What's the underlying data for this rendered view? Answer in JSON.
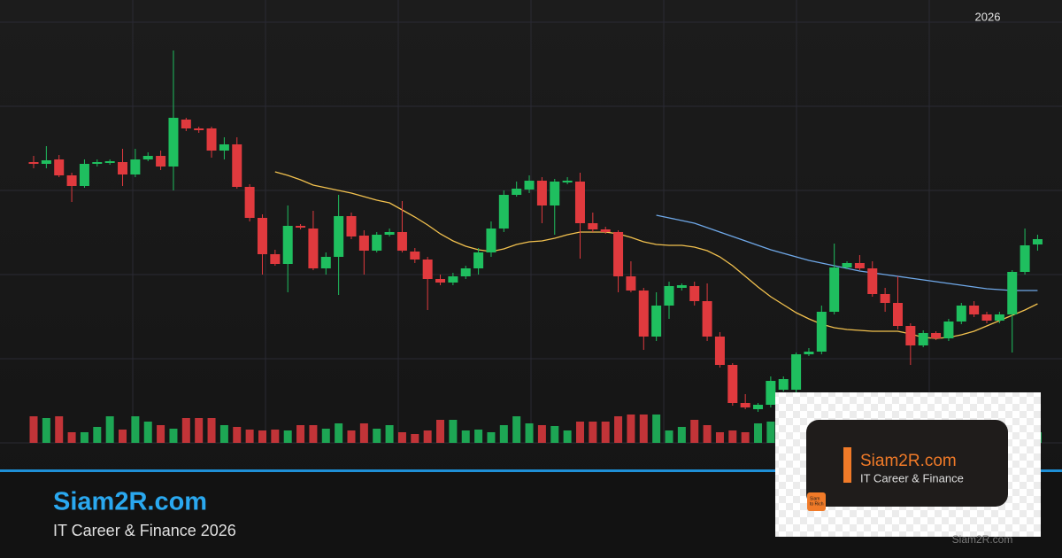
{
  "chart_data": {
    "type": "candlestick",
    "ylim": [
      0,
      475
    ],
    "volume_lim": [
      0,
      100
    ],
    "up_color": "#1fbf5f",
    "down_color": "#e03a3e",
    "open": [
      317,
      315,
      320,
      302,
      290,
      315,
      316,
      317,
      303,
      320,
      324,
      312,
      365,
      355,
      355,
      330,
      337,
      289,
      254,
      213,
      202,
      245,
      242,
      197,
      210,
      256,
      234,
      217,
      235,
      238,
      216,
      207,
      185,
      181,
      188,
      197,
      215,
      242,
      280,
      286,
      296,
      268,
      294,
      295,
      248,
      241,
      238,
      188,
      172,
      120,
      155,
      175,
      177,
      160,
      120,
      88,
      45,
      38,
      43,
      60,
      60,
      100,
      103,
      148,
      198,
      203,
      197,
      168,
      158,
      132,
      110,
      124,
      118,
      137,
      155,
      145,
      138,
      145,
      193,
      224
    ],
    "high": [
      324,
      335,
      325,
      305,
      320,
      320,
      320,
      332,
      332,
      328,
      330,
      443,
      367,
      357,
      357,
      345,
      345,
      292,
      258,
      218,
      268,
      247,
      262,
      215,
      280,
      260,
      240,
      238,
      242,
      273,
      220,
      210,
      190,
      192,
      200,
      220,
      250,
      285,
      295,
      302,
      300,
      298,
      300,
      305,
      260,
      244,
      240,
      205,
      175,
      170,
      182,
      180,
      182,
      180,
      125,
      90,
      55,
      45,
      75,
      75,
      102,
      107,
      155,
      225,
      205,
      212,
      205,
      175,
      188,
      135,
      127,
      126,
      140,
      158,
      160,
      148,
      148,
      195,
      242,
      235
    ],
    "low": [
      310,
      310,
      300,
      272,
      288,
      312,
      314,
      290,
      300,
      318,
      308,
      285,
      352,
      350,
      322,
      320,
      287,
      250,
      190,
      200,
      170,
      241,
      195,
      190,
      167,
      230,
      190,
      215,
      233,
      215,
      203,
      150,
      178,
      178,
      185,
      190,
      210,
      238,
      278,
      282,
      248,
      235,
      292,
      208,
      238,
      236,
      170,
      170,
      105,
      115,
      140,
      172,
      155,
      115,
      85,
      42,
      38,
      35,
      40,
      58,
      55,
      98,
      100,
      145,
      196,
      195,
      165,
      148,
      128,
      88,
      108,
      116,
      115,
      134,
      142,
      135,
      135,
      102,
      190,
      217
    ],
    "close": [
      315,
      319,
      302,
      290,
      315,
      317,
      318,
      303,
      320,
      324,
      312,
      367,
      355,
      353,
      330,
      337,
      289,
      254,
      213,
      202,
      245,
      243,
      197,
      210,
      256,
      233,
      217,
      235,
      238,
      217,
      207,
      185,
      181,
      188,
      197,
      215,
      242,
      280,
      287,
      296,
      268,
      295,
      296,
      248,
      241,
      238,
      188,
      172,
      120,
      155,
      177,
      178,
      160,
      120,
      88,
      45,
      40,
      43,
      70,
      72,
      100,
      103,
      148,
      198,
      203,
      197,
      168,
      158,
      132,
      110,
      124,
      118,
      137,
      155,
      145,
      138,
      145,
      193,
      223,
      230
    ],
    "volume": [
      30,
      28,
      30,
      12,
      12,
      18,
      30,
      15,
      30,
      24,
      20,
      16,
      28,
      28,
      28,
      20,
      18,
      15,
      14,
      15,
      14,
      20,
      20,
      16,
      22,
      14,
      22,
      16,
      20,
      12,
      10,
      14,
      26,
      26,
      14,
      15,
      12,
      20,
      30,
      22,
      20,
      19,
      14,
      24,
      24,
      24,
      30,
      32,
      32,
      32,
      14,
      18,
      26,
      20,
      12,
      14,
      12,
      22,
      24,
      30,
      30,
      24,
      30,
      22,
      18,
      20,
      24,
      16,
      14,
      22,
      18,
      20,
      26,
      16,
      22,
      18,
      14,
      20,
      24,
      12
    ],
    "series": [
      {
        "color": "#f2c14e",
        "values": [
          null,
          null,
          null,
          null,
          null,
          null,
          null,
          null,
          null,
          null,
          null,
          null,
          null,
          null,
          null,
          null,
          null,
          null,
          null,
          306,
          302,
          297,
          291,
          288,
          285,
          282,
          278,
          274,
          271,
          263,
          255,
          246,
          236,
          228,
          222,
          218,
          216,
          219,
          224,
          227,
          228,
          231,
          235,
          238,
          238,
          238,
          236,
          232,
          227,
          224,
          223,
          223,
          221,
          217,
          210,
          200,
          188,
          176,
          165,
          156,
          147,
          140,
          134,
          130,
          128,
          127,
          126,
          126,
          126,
          123,
          119,
          118,
          119,
          122,
          126,
          132,
          138,
          144,
          150,
          157
        ]
      },
      {
        "color": "#6fa8e8",
        "values": [
          null,
          null,
          null,
          null,
          null,
          null,
          null,
          null,
          null,
          null,
          null,
          null,
          null,
          null,
          null,
          null,
          null,
          null,
          null,
          null,
          null,
          null,
          null,
          null,
          null,
          null,
          null,
          null,
          null,
          null,
          null,
          null,
          null,
          null,
          null,
          null,
          null,
          null,
          null,
          null,
          null,
          null,
          null,
          null,
          null,
          null,
          null,
          null,
          null,
          257,
          254,
          251,
          248,
          243,
          238,
          233,
          228,
          223,
          218,
          214,
          210,
          206,
          203,
          200,
          197,
          194,
          192,
          190,
          188,
          186,
          184,
          182,
          180,
          178,
          176,
          174,
          173,
          172,
          172,
          172
        ]
      }
    ],
    "year_label": "2026"
  },
  "brand": {
    "title": "Siam2R.com",
    "subtitle": "IT Career & Finance 2026"
  },
  "card": {
    "title": "Siam2R.com",
    "subtitle": "IT Career & Finance",
    "logo": [
      "Siam",
      "to Rich"
    ]
  },
  "watermark": "Siam2R.com"
}
